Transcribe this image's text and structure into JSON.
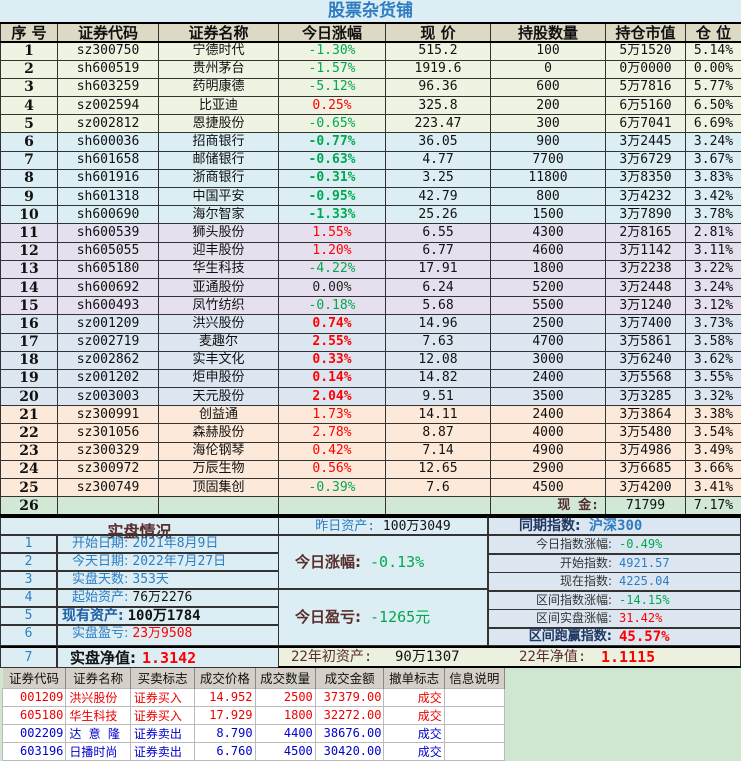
{
  "title": "股票杂货铺",
  "headers": [
    "序 号",
    "证券代码",
    "证券名称",
    "今日涨幅",
    "现 价",
    "持股数量",
    "持仓市值",
    "仓 位"
  ],
  "holdings": [
    {
      "no": "1",
      "code": "sz300750",
      "name": "宁德时代",
      "chg": "-1.30%",
      "dir": "dn",
      "bold": false,
      "price": "515.2",
      "qty": "100",
      "value": "5万1520",
      "pos": "5.14%",
      "group": 0
    },
    {
      "no": "2",
      "code": "sh600519",
      "name": "贵州茅台",
      "chg": "-1.57%",
      "dir": "dn",
      "bold": false,
      "price": "1919.6",
      "qty": "0",
      "value": "0万0000",
      "pos": "0.00%",
      "group": 0
    },
    {
      "no": "3",
      "code": "sh603259",
      "name": "药明康德",
      "chg": "-5.12%",
      "dir": "dn",
      "bold": false,
      "price": "96.36",
      "qty": "600",
      "value": "5万7816",
      "pos": "5.77%",
      "group": 0
    },
    {
      "no": "4",
      "code": "sz002594",
      "name": "比亚迪",
      "chg": "0.25%",
      "dir": "up",
      "bold": false,
      "price": "325.8",
      "qty": "200",
      "value": "6万5160",
      "pos": "6.50%",
      "group": 0
    },
    {
      "no": "5",
      "code": "sz002812",
      "name": "恩捷股份",
      "chg": "-0.65%",
      "dir": "dn",
      "bold": false,
      "price": "223.47",
      "qty": "300",
      "value": "6万7041",
      "pos": "6.69%",
      "group": 0
    },
    {
      "no": "6",
      "code": "sh600036",
      "name": "招商银行",
      "chg": "-0.77%",
      "dir": "dn",
      "bold": true,
      "price": "36.05",
      "qty": "900",
      "value": "3万2445",
      "pos": "3.24%",
      "group": 1
    },
    {
      "no": "7",
      "code": "sh601658",
      "name": "邮储银行",
      "chg": "-0.63%",
      "dir": "dn",
      "bold": true,
      "price": "4.77",
      "qty": "7700",
      "value": "3万6729",
      "pos": "3.67%",
      "group": 1
    },
    {
      "no": "8",
      "code": "sh601916",
      "name": "浙商银行",
      "chg": "-0.31%",
      "dir": "dn",
      "bold": true,
      "price": "3.25",
      "qty": "11800",
      "value": "3万8350",
      "pos": "3.83%",
      "group": 1
    },
    {
      "no": "9",
      "code": "sh601318",
      "name": "中国平安",
      "chg": "-0.95%",
      "dir": "dn",
      "bold": true,
      "price": "42.79",
      "qty": "800",
      "value": "3万4232",
      "pos": "3.42%",
      "group": 1
    },
    {
      "no": "10",
      "code": "sh600690",
      "name": "海尔智家",
      "chg": "-1.33%",
      "dir": "dn",
      "bold": true,
      "price": "25.26",
      "qty": "1500",
      "value": "3万7890",
      "pos": "3.78%",
      "group": 1
    },
    {
      "no": "11",
      "code": "sh600539",
      "name": "狮头股份",
      "chg": "1.55%",
      "dir": "up",
      "bold": false,
      "price": "6.55",
      "qty": "4300",
      "value": "2万8165",
      "pos": "2.81%",
      "group": 2
    },
    {
      "no": "12",
      "code": "sh605055",
      "name": "迎丰股份",
      "chg": "1.20%",
      "dir": "up",
      "bold": false,
      "price": "6.77",
      "qty": "4600",
      "value": "3万1142",
      "pos": "3.11%",
      "group": 2
    },
    {
      "no": "13",
      "code": "sh605180",
      "name": "华生科技",
      "chg": "-4.22%",
      "dir": "dn",
      "bold": false,
      "price": "17.91",
      "qty": "1800",
      "value": "3万2238",
      "pos": "3.22%",
      "group": 2
    },
    {
      "no": "14",
      "code": "sh600692",
      "name": "亚通股份",
      "chg": "0.00%",
      "dir": "flat",
      "bold": false,
      "price": "6.24",
      "qty": "5200",
      "value": "3万2448",
      "pos": "3.24%",
      "group": 2
    },
    {
      "no": "15",
      "code": "sh600493",
      "name": "凤竹纺织",
      "chg": "-0.18%",
      "dir": "dn",
      "bold": false,
      "price": "5.68",
      "qty": "5500",
      "value": "3万1240",
      "pos": "3.12%",
      "group": 2
    },
    {
      "no": "16",
      "code": "sz001209",
      "name": "洪兴股份",
      "chg": "0.74%",
      "dir": "up",
      "bold": true,
      "price": "14.96",
      "qty": "2500",
      "value": "3万7400",
      "pos": "3.73%",
      "group": 3
    },
    {
      "no": "17",
      "code": "sz002719",
      "name": "麦趣尔",
      "chg": "2.55%",
      "dir": "up",
      "bold": true,
      "price": "7.63",
      "qty": "4700",
      "value": "3万5861",
      "pos": "3.58%",
      "group": 3
    },
    {
      "no": "18",
      "code": "sz002862",
      "name": "实丰文化",
      "chg": "0.33%",
      "dir": "up",
      "bold": true,
      "price": "12.08",
      "qty": "3000",
      "value": "3万6240",
      "pos": "3.62%",
      "group": 3
    },
    {
      "no": "19",
      "code": "sz001202",
      "name": "炬申股份",
      "chg": "0.14%",
      "dir": "up",
      "bold": true,
      "price": "14.82",
      "qty": "2400",
      "value": "3万5568",
      "pos": "3.55%",
      "group": 3
    },
    {
      "no": "20",
      "code": "sz003003",
      "name": "天元股份",
      "chg": "2.04%",
      "dir": "up",
      "bold": true,
      "price": "9.51",
      "qty": "3500",
      "value": "3万3285",
      "pos": "3.32%",
      "group": 3
    },
    {
      "no": "21",
      "code": "sz300991",
      "name": "创益通",
      "chg": "1.73%",
      "dir": "up",
      "bold": false,
      "price": "14.11",
      "qty": "2400",
      "value": "3万3864",
      "pos": "3.38%",
      "group": 4
    },
    {
      "no": "22",
      "code": "sz301056",
      "name": "森赫股份",
      "chg": "2.78%",
      "dir": "up",
      "bold": false,
      "price": "8.87",
      "qty": "4000",
      "value": "3万5480",
      "pos": "3.54%",
      "group": 4
    },
    {
      "no": "23",
      "code": "sz300329",
      "name": "海伦钢琴",
      "chg": "0.42%",
      "dir": "up",
      "bold": false,
      "price": "7.14",
      "qty": "4900",
      "value": "3万4986",
      "pos": "3.49%",
      "group": 4
    },
    {
      "no": "24",
      "code": "sz300972",
      "name": "万辰生物",
      "chg": "0.56%",
      "dir": "up",
      "bold": false,
      "price": "12.65",
      "qty": "2900",
      "value": "3万6685",
      "pos": "3.66%",
      "group": 4
    },
    {
      "no": "25",
      "code": "sz300749",
      "name": "顶固集创",
      "chg": "-0.39%",
      "dir": "dn",
      "bold": false,
      "price": "7.6",
      "qty": "4500",
      "value": "3万4200",
      "pos": "3.41%",
      "group": 4
    }
  ],
  "cash": {
    "no": "26",
    "label": "现  金:",
    "value": "71799",
    "pos": "7.17%"
  },
  "summary": {
    "title": "实盘情况",
    "rows": [
      {
        "no": "1",
        "label": "开始日期:",
        "value": "2021年8月9日"
      },
      {
        "no": "2",
        "label": "今天日期:",
        "value": "2022年7月27日"
      },
      {
        "no": "3",
        "label": "实盘天数:",
        "value": "353天"
      },
      {
        "no": "4",
        "label": "起始资产:",
        "value": "76万2276"
      },
      {
        "no": "5",
        "label": "现有资产:",
        "value": "100万1784"
      },
      {
        "no": "6",
        "label": "实盘盈亏:",
        "value": "23万9508"
      }
    ],
    "nav_no": "7",
    "nav_label": "实盘净值:",
    "nav_value": "1.3142"
  },
  "middle": {
    "yesterday_label": "昨日资产:",
    "yesterday_value": "100万3049",
    "today_chg_label": "今日涨幅:",
    "today_chg_value": "-0.13%",
    "today_pnl_label": "今日盈亏:",
    "today_pnl_value": "-1265元",
    "year_start_label": "22年初资产:",
    "year_start_value": "90万1307",
    "year_nav_label": "22年净值:",
    "year_nav_value": "1.1115"
  },
  "index": {
    "title_label": "同期指数:",
    "title_value": "沪深300",
    "rows": [
      {
        "label": "今日指数涨幅:",
        "value": "-0.49%",
        "color": "#00a850"
      },
      {
        "label": "开始指数:",
        "value": "4921.57",
        "color": "#2e7dc4"
      },
      {
        "label": "现在指数:",
        "value": "4225.04",
        "color": "#2e7dc4"
      },
      {
        "label": "区间指数涨幅:",
        "value": "-14.15%",
        "color": "#00a850"
      },
      {
        "label": "区间实盘涨幅:",
        "value": "31.42%",
        "color": "#f00"
      }
    ],
    "beat_label": "区间跑赢指数:",
    "beat_value": "45.57%"
  },
  "trades": {
    "headers": [
      "证券代码",
      "证券名称",
      "买卖标志",
      "成交价格",
      "成交数量",
      "成交金额",
      "撤单标志",
      "信息说明"
    ],
    "rows": [
      {
        "code": "001209",
        "name": "洪兴股份",
        "side": "证券买入",
        "price": "14.952",
        "qty": "2500",
        "amount": "37379.00",
        "status": "成交",
        "type": "buy"
      },
      {
        "code": "605180",
        "name": "华生科技",
        "side": "证券买入",
        "price": "17.929",
        "qty": "1800",
        "amount": "32272.00",
        "status": "成交",
        "type": "buy"
      },
      {
        "code": "002209",
        "name": "达 意 隆",
        "side": "证券卖出",
        "price": "8.790",
        "qty": "4400",
        "amount": "38676.00",
        "status": "成交",
        "type": "sell"
      },
      {
        "code": "603196",
        "name": "日播时尚",
        "side": "证券卖出",
        "price": "6.760",
        "qty": "4500",
        "amount": "30420.00",
        "status": "成交",
        "type": "sell"
      }
    ]
  }
}
